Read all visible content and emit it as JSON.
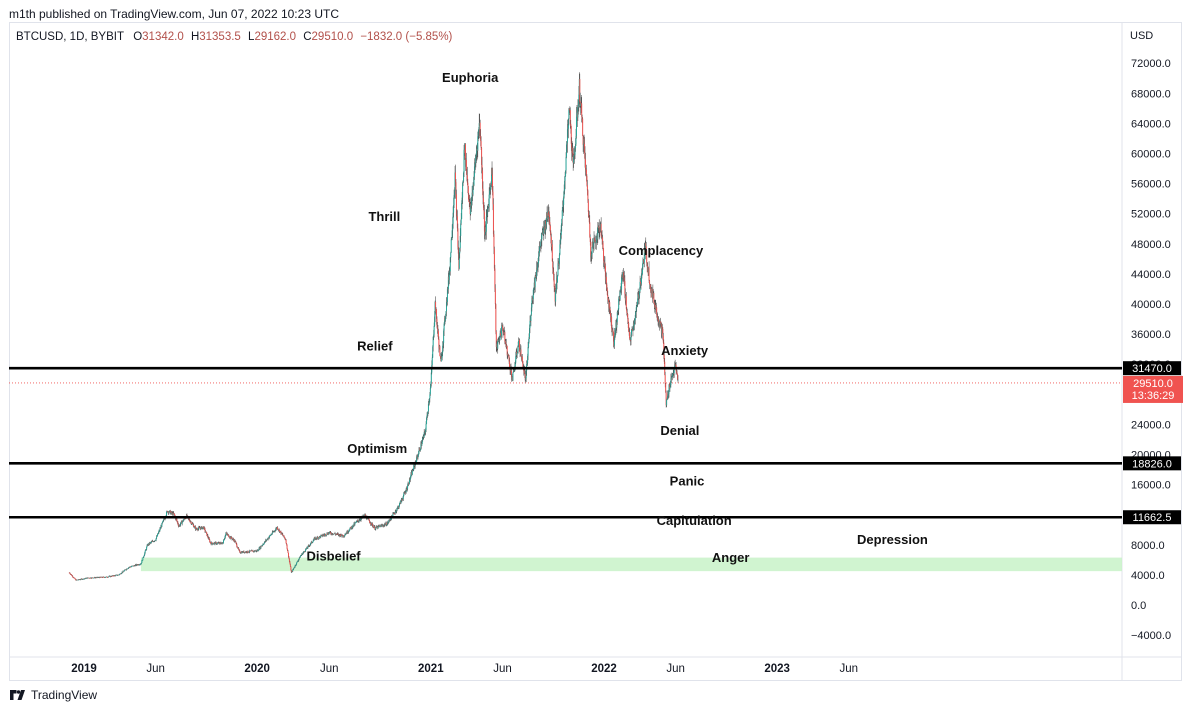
{
  "header": {
    "published": "m1th published on TradingView.com, Jun 07, 2022 10:23 UTC"
  },
  "legend": {
    "symbol": "BTCUSD, 1D, BYBIT",
    "o_label": "O",
    "o_value": "31342.0",
    "h_label": "H",
    "h_value": "31353.5",
    "l_label": "L",
    "l_value": "29162.0",
    "c_label": "C",
    "c_value": "29510.0",
    "change": "−1832.0 (−5.85%)"
  },
  "footer": {
    "brand": "TradingView"
  },
  "colors": {
    "up": "#26a69a",
    "down": "#ef5350",
    "level_line": "#000000",
    "zone": "#c8f2c8",
    "price_badge": "#f05350",
    "level_badge": "#000000"
  },
  "chart_data": {
    "type": "line",
    "title": "",
    "xlabel": "",
    "ylabel": "",
    "y_unit_label": "USD",
    "ylim": [
      -6000,
      74000
    ],
    "xlim": [
      "2018-11-12",
      "2023-10-01"
    ],
    "y_ticks": [
      -4000,
      0,
      4000,
      8000,
      12000,
      16000,
      20000,
      24000,
      28000,
      32000,
      36000,
      40000,
      44000,
      48000,
      52000,
      56000,
      60000,
      64000,
      68000,
      72000
    ],
    "y_tick_labels": [
      "−4000.0",
      "0.0",
      "4000.0",
      "8000.0",
      "12000.0",
      "16000.0",
      "20000.0",
      "24000.0",
      "28000.0",
      "32000.0",
      "36000.0",
      "40000.0",
      "44000.0",
      "48000.0",
      "52000.0",
      "56000.0",
      "60000.0",
      "64000.0",
      "68000.0",
      "72000.0"
    ],
    "x_ticks": [
      {
        "date": "2019-01-01",
        "label": "2019",
        "bold": true
      },
      {
        "date": "2019-06-01",
        "label": "Jun",
        "bold": false
      },
      {
        "date": "2020-01-01",
        "label": "2020",
        "bold": true
      },
      {
        "date": "2020-06-01",
        "label": "Jun",
        "bold": false
      },
      {
        "date": "2021-01-01",
        "label": "2021",
        "bold": true
      },
      {
        "date": "2021-06-01",
        "label": "Jun",
        "bold": false
      },
      {
        "date": "2022-01-01",
        "label": "2022",
        "bold": true
      },
      {
        "date": "2022-06-01",
        "label": "Jun",
        "bold": false
      },
      {
        "date": "2023-01-01",
        "label": "2023",
        "bold": true
      },
      {
        "date": "2023-06-01",
        "label": "Jun",
        "bold": false
      }
    ],
    "series": [
      {
        "points": [
          [
            "2018-12-01",
            4300
          ],
          [
            "2018-12-15",
            3300
          ],
          [
            "2019-01-10",
            3600
          ],
          [
            "2019-02-15",
            3700
          ],
          [
            "2019-03-15",
            4000
          ],
          [
            "2019-04-05",
            5000
          ],
          [
            "2019-05-01",
            5500
          ],
          [
            "2019-05-15",
            8000
          ],
          [
            "2019-06-01",
            8700
          ],
          [
            "2019-06-26",
            12500
          ],
          [
            "2019-07-10",
            12000
          ],
          [
            "2019-07-20",
            10500
          ],
          [
            "2019-08-05",
            11800
          ],
          [
            "2019-08-25",
            10100
          ],
          [
            "2019-09-10",
            10300
          ],
          [
            "2019-09-25",
            8200
          ],
          [
            "2019-10-20",
            8200
          ],
          [
            "2019-10-27",
            9500
          ],
          [
            "2019-11-15",
            8500
          ],
          [
            "2019-11-25",
            7000
          ],
          [
            "2019-12-15",
            7100
          ],
          [
            "2020-01-01",
            7200
          ],
          [
            "2020-02-12",
            10300
          ],
          [
            "2020-03-01",
            8700
          ],
          [
            "2020-03-13",
            4300
          ],
          [
            "2020-04-01",
            6500
          ],
          [
            "2020-05-01",
            8800
          ],
          [
            "2020-06-01",
            9600
          ],
          [
            "2020-07-01",
            9200
          ],
          [
            "2020-07-28",
            11000
          ],
          [
            "2020-08-15",
            11900
          ],
          [
            "2020-09-05",
            10200
          ],
          [
            "2020-10-01",
            10800
          ],
          [
            "2020-10-25",
            13100
          ],
          [
            "2020-11-10",
            15300
          ],
          [
            "2020-12-01",
            19200
          ],
          [
            "2020-12-20",
            23000
          ],
          [
            "2021-01-01",
            29300
          ],
          [
            "2021-01-10",
            40000
          ],
          [
            "2021-01-22",
            32000
          ],
          [
            "2021-02-10",
            45000
          ],
          [
            "2021-02-21",
            57000
          ],
          [
            "2021-03-01",
            45000
          ],
          [
            "2021-03-13",
            61000
          ],
          [
            "2021-03-25",
            52000
          ],
          [
            "2021-04-14",
            64500
          ],
          [
            "2021-04-25",
            49000
          ],
          [
            "2021-05-10",
            58000
          ],
          [
            "2021-05-19",
            34000
          ],
          [
            "2021-06-01",
            37000
          ],
          [
            "2021-06-22",
            30000
          ],
          [
            "2021-07-05",
            35000
          ],
          [
            "2021-07-20",
            29800
          ],
          [
            "2021-08-01",
            40000
          ],
          [
            "2021-08-20",
            48000
          ],
          [
            "2021-09-07",
            52500
          ],
          [
            "2021-09-20",
            41000
          ],
          [
            "2021-10-01",
            48000
          ],
          [
            "2021-10-20",
            66000
          ],
          [
            "2021-10-28",
            58000
          ],
          [
            "2021-11-10",
            68800
          ],
          [
            "2021-11-28",
            54000
          ],
          [
            "2021-12-04",
            47000
          ],
          [
            "2021-12-25",
            50500
          ],
          [
            "2022-01-05",
            43000
          ],
          [
            "2022-01-22",
            35000
          ],
          [
            "2022-02-10",
            44500
          ],
          [
            "2022-02-24",
            35000
          ],
          [
            "2022-03-10",
            39000
          ],
          [
            "2022-03-29",
            47500
          ],
          [
            "2022-04-10",
            42000
          ],
          [
            "2022-04-26",
            38000
          ],
          [
            "2022-05-05",
            36000
          ],
          [
            "2022-05-12",
            26700
          ],
          [
            "2022-05-20",
            29500
          ],
          [
            "2022-05-31",
            31800
          ],
          [
            "2022-06-07",
            29510
          ]
        ]
      }
    ],
    "levels": [
      {
        "value": 31470.0,
        "label": "31470.0"
      },
      {
        "value": 18826.0,
        "label": "18826.0"
      },
      {
        "value": 11662.5,
        "label": "11662.5"
      }
    ],
    "current_price": {
      "value": 29510.0,
      "label": "29510.0",
      "countdown": "13:36:29"
    },
    "zone": {
      "from": 4500,
      "to": 6300,
      "start": "2019-05-01"
    },
    "annotations": [
      {
        "text": "Euphoria",
        "date": "2021-03-25",
        "y": 69500
      },
      {
        "text": "Thrill",
        "date": "2020-09-25",
        "y": 51000
      },
      {
        "text": "Complacency",
        "date": "2022-05-01",
        "y": 46500
      },
      {
        "text": "Relief",
        "date": "2020-09-05",
        "y": 33800
      },
      {
        "text": "Anxiety",
        "date": "2022-06-20",
        "y": 33200
      },
      {
        "text": "Denial",
        "date": "2022-06-10",
        "y": 22600
      },
      {
        "text": "Optimism",
        "date": "2020-09-10",
        "y": 20200
      },
      {
        "text": "Panic",
        "date": "2022-06-25",
        "y": 15900
      },
      {
        "text": "Capitulation",
        "date": "2022-07-10",
        "y": 10600
      },
      {
        "text": "Depression",
        "date": "2023-09-01",
        "y": 8100
      },
      {
        "text": "Disbelief",
        "date": "2020-06-10",
        "y": 5900
      },
      {
        "text": "Anger",
        "date": "2022-09-25",
        "y": 5700
      }
    ]
  }
}
